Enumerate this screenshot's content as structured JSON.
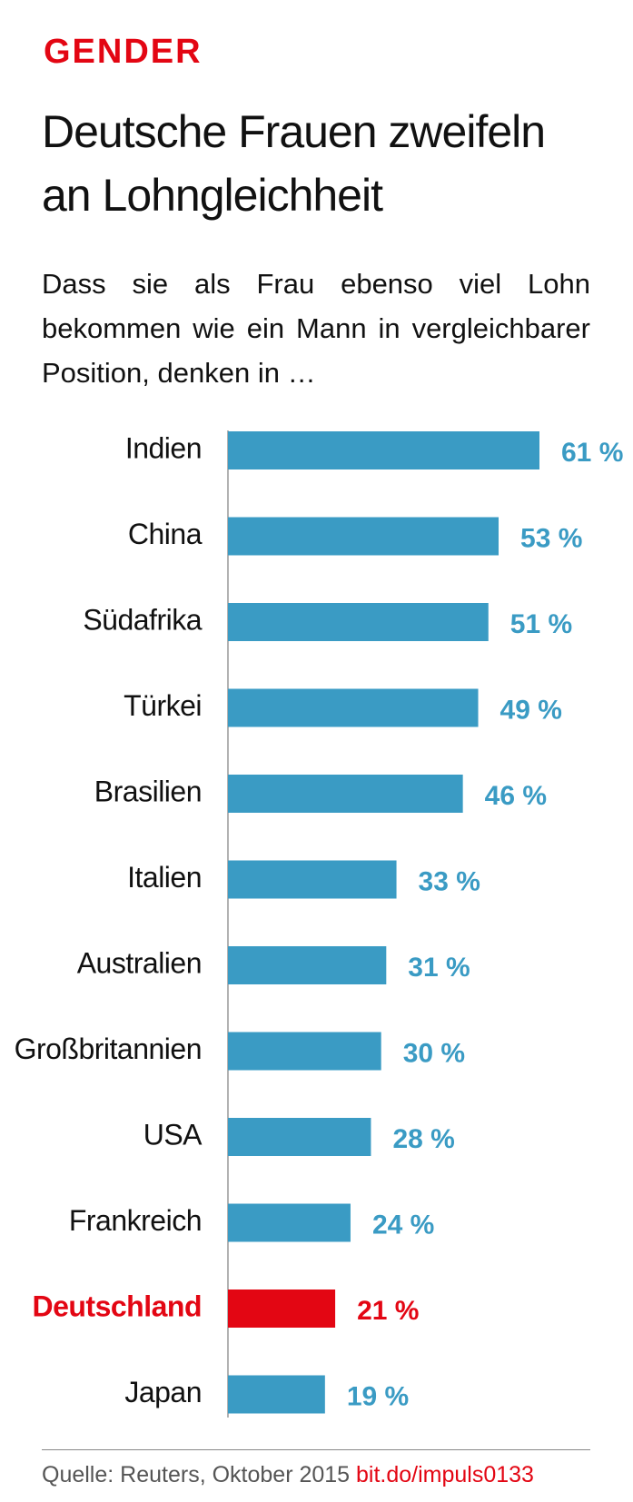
{
  "chart_data": {
    "type": "hbar",
    "kicker": "GENDER",
    "title": "Deutsche Frauen zweifeln an Lohngleichheit",
    "subtitle": "Dass sie als Frau ebenso viel Lohn bekommen wie ein Mann in vergleichbarer Position, denken in …",
    "categories": [
      "Indien",
      "China",
      "Südafrika",
      "Türkei",
      "Brasilien",
      "Italien",
      "Australien",
      "Großbritannien",
      "USA",
      "Frankreich",
      "Deutschland",
      "Japan"
    ],
    "values": [
      61,
      53,
      51,
      49,
      46,
      33,
      31,
      30,
      28,
      24,
      21,
      19
    ],
    "value_labels": [
      "61 %",
      "53 %",
      "51 %",
      "49 %",
      "46 %",
      "33 %",
      "31 %",
      "30 %",
      "28 %",
      "24 %",
      "21 %",
      "19 %"
    ],
    "colors": [
      "#3a9bc4",
      "#3a9bc4",
      "#3a9bc4",
      "#3a9bc4",
      "#3a9bc4",
      "#3a9bc4",
      "#3a9bc4",
      "#3a9bc4",
      "#3a9bc4",
      "#3a9bc4",
      "#e30613",
      "#3a9bc4"
    ],
    "source": "Quelle: Reuters, Oktober 2015",
    "link": "bit.do/impuls0133"
  }
}
